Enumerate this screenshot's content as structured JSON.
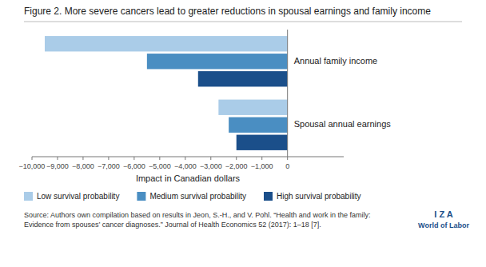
{
  "chart_data": {
    "type": "bar",
    "orientation": "horizontal",
    "title": "Figure 2. More severe cancers lead to greater reductions in spousal earnings and family income",
    "categories": [
      "Annual family income",
      "Spousal annual earnings"
    ],
    "series": [
      {
        "name": "Low survival probability",
        "color": "#aacce8",
        "values": [
          -9500,
          -2700
        ]
      },
      {
        "name": "Medium survival probability",
        "color": "#4a8ec2",
        "values": [
          -5500,
          -2300
        ]
      },
      {
        "name": "High survival probability",
        "color": "#1b4f8a",
        "values": [
          -3500,
          -2000
        ]
      }
    ],
    "xlabel": "Impact in Canadian dollars",
    "xlim": [
      -10000,
      2200
    ],
    "xticks": [
      {
        "value": -10000,
        "label": "−10,000"
      },
      {
        "value": -9000,
        "label": "−9,000"
      },
      {
        "value": -8000,
        "label": "−8,000"
      },
      {
        "value": -7000,
        "label": "−7,000"
      },
      {
        "value": -6000,
        "label": "−6,000"
      },
      {
        "value": -5000,
        "label": "−5,000"
      },
      {
        "value": -4000,
        "label": "−4,000"
      },
      {
        "value": -3000,
        "label": "−3,000"
      },
      {
        "value": -2000,
        "label": "−2,000"
      },
      {
        "value": -1000,
        "label": "−1,000"
      },
      0
    ],
    "grid": false,
    "legend": "bottom",
    "tick_labels": "x",
    "annotations": [
      "Source: Authors own compilation based on results in Jeon, S.-H., and V. Pohl. “Health and work in the family: Evidence from spouses’ cancer diagnoses.” Journal of Health Economics 52 (2017): 1–18 [7].",
      "I Z A",
      "World of Labor"
    ]
  }
}
